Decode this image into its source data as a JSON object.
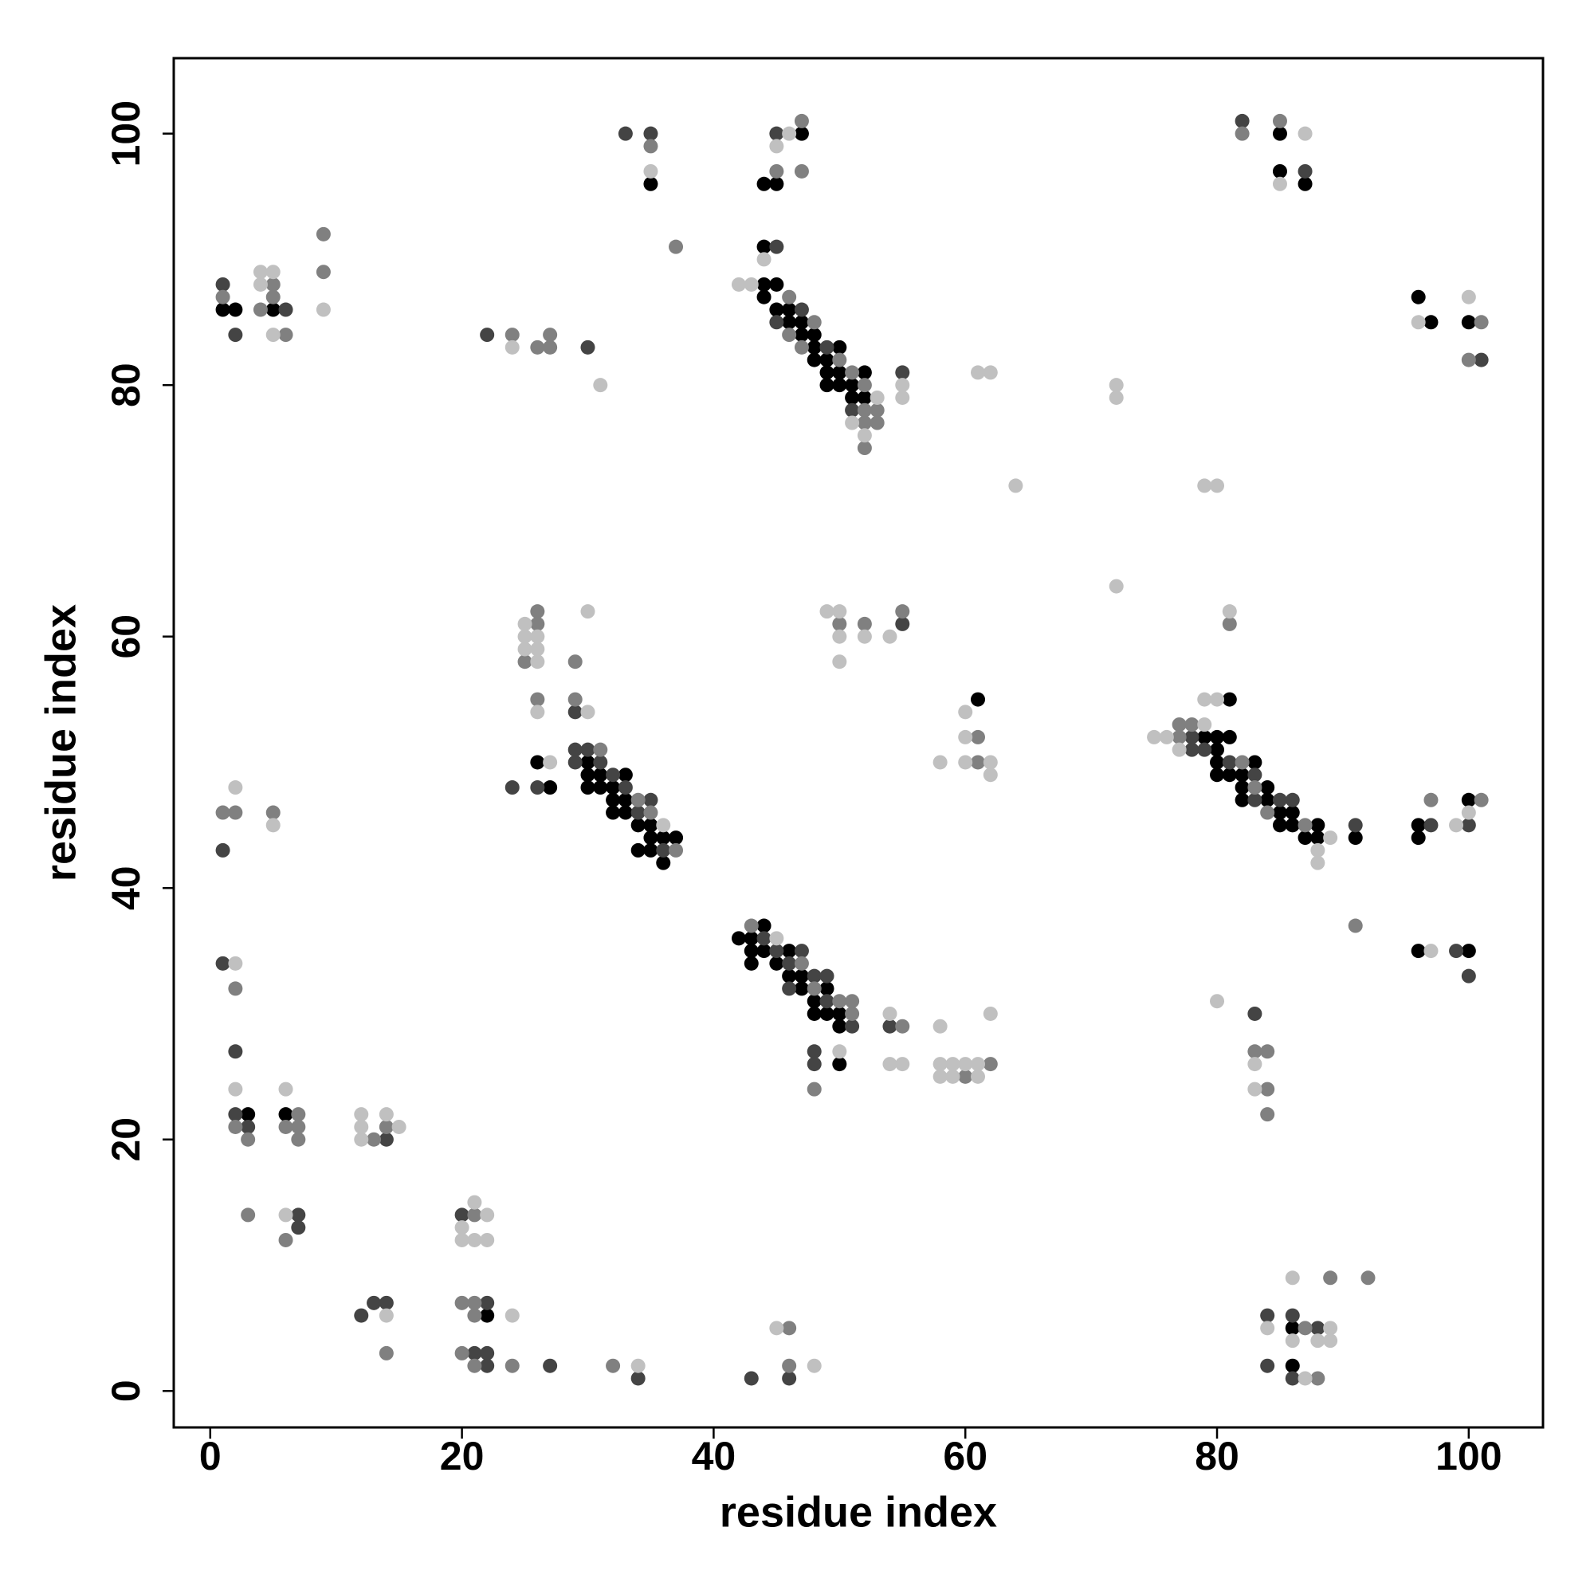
{
  "chart_data": {
    "type": "scatter",
    "x_label": "residue index",
    "y_label": "residue index",
    "xlim": [
      -2.9,
      105.9
    ],
    "ylim": [
      -2.9,
      106
    ],
    "xticks": [
      0,
      20,
      40,
      60,
      80,
      100
    ],
    "yticks": [
      0,
      20,
      40,
      60,
      80,
      100
    ],
    "grid": false,
    "series": [
      {
        "color": "#000000",
        "x": [
          1,
          2,
          5,
          35,
          44,
          44,
          44,
          44,
          45,
          45,
          45,
          46,
          46,
          47,
          47,
          47,
          48,
          48,
          48,
          49,
          49,
          49,
          50,
          50,
          50,
          51,
          51,
          52,
          52,
          85,
          85,
          87,
          96,
          97,
          100,
          26,
          27,
          30,
          30,
          30,
          31,
          31,
          32,
          32,
          32,
          33,
          33,
          33,
          34,
          34,
          35,
          35,
          35,
          36,
          36,
          37,
          61,
          79,
          80,
          80,
          80,
          80,
          81,
          81,
          81,
          82,
          82,
          82,
          83,
          84,
          84,
          85,
          85,
          86,
          86,
          87,
          88,
          88,
          91,
          96,
          96,
          100,
          42,
          43,
          43,
          43,
          44,
          44,
          45,
          46,
          46,
          47,
          47,
          48,
          48,
          49,
          49,
          50,
          50,
          50,
          96,
          100,
          3,
          6,
          22,
          86,
          86
        ],
        "values": [
          86,
          86,
          86,
          96,
          96,
          91,
          88,
          87,
          96,
          88,
          86,
          86,
          85,
          100,
          85,
          84,
          84,
          83,
          82,
          82,
          81,
          80,
          83,
          81,
          80,
          80,
          79,
          81,
          79,
          100,
          97,
          96,
          87,
          85,
          85,
          50,
          48,
          50,
          49,
          48,
          49,
          48,
          48,
          47,
          46,
          49,
          47,
          46,
          45,
          43,
          45,
          44,
          43,
          44,
          42,
          44,
          55,
          52,
          52,
          51,
          50,
          49,
          55,
          52,
          49,
          49,
          48,
          47,
          50,
          48,
          47,
          46,
          45,
          46,
          45,
          44,
          45,
          44,
          44,
          45,
          44,
          47,
          36,
          36,
          35,
          34,
          37,
          35,
          34,
          35,
          33,
          33,
          32,
          31,
          30,
          32,
          30,
          30,
          29,
          26,
          35,
          35,
          22,
          22,
          6,
          5,
          2
        ]
      },
      {
        "color": "#444444",
        "x": [
          1,
          2,
          6,
          30,
          22,
          33,
          35,
          45,
          45,
          45,
          47,
          49,
          51,
          55,
          82,
          87,
          101,
          26,
          24,
          29,
          29,
          29,
          30,
          31,
          32,
          33,
          34,
          35,
          36,
          55,
          78,
          78,
          79,
          81,
          83,
          83,
          85,
          86,
          91,
          97,
          100,
          1,
          44,
          45,
          46,
          46,
          47,
          48,
          48,
          48,
          49,
          49,
          51,
          54,
          99,
          100,
          83,
          1,
          2,
          2,
          3,
          7,
          7,
          14,
          20,
          22,
          21,
          22,
          22,
          27,
          12,
          13,
          14,
          34,
          43,
          46,
          84,
          84,
          86,
          86,
          88
        ],
        "values": [
          88,
          84,
          86,
          83,
          84,
          100,
          100,
          100,
          91,
          85,
          86,
          83,
          78,
          81,
          101,
          97,
          82,
          48,
          48,
          54,
          51,
          50,
          51,
          50,
          49,
          48,
          46,
          47,
          43,
          61,
          52,
          51,
          51,
          50,
          49,
          47,
          47,
          47,
          45,
          45,
          45,
          43,
          36,
          35,
          34,
          32,
          35,
          33,
          27,
          26,
          33,
          31,
          29,
          29,
          35,
          33,
          30,
          34,
          27,
          22,
          21,
          14,
          13,
          20,
          14,
          7,
          3,
          3,
          2,
          2,
          6,
          7,
          7,
          1,
          1,
          1,
          6,
          2,
          6,
          1,
          5
        ]
      },
      {
        "color": "#808080",
        "x": [
          1,
          4,
          5,
          5,
          6,
          9,
          9,
          24,
          26,
          27,
          27,
          35,
          37,
          45,
          46,
          46,
          47,
          47,
          47,
          48,
          50,
          51,
          52,
          52,
          52,
          52,
          53,
          53,
          82,
          85,
          100,
          101,
          25,
          26,
          26,
          26,
          29,
          29,
          31,
          34,
          35,
          37,
          50,
          52,
          55,
          61,
          61,
          77,
          77,
          78,
          82,
          83,
          84,
          87,
          97,
          101,
          81,
          1,
          2,
          5,
          43,
          47,
          48,
          48,
          50,
          51,
          51,
          55,
          60,
          62,
          91,
          83,
          84,
          84,
          84,
          2,
          2,
          3,
          3,
          6,
          6,
          7,
          7,
          7,
          13,
          14,
          20,
          20,
          21,
          21,
          21,
          21,
          24,
          14,
          32,
          46,
          46,
          87,
          88,
          89,
          92
        ],
        "values": [
          87,
          86,
          88,
          87,
          84,
          92,
          89,
          84,
          83,
          84,
          83,
          99,
          91,
          97,
          87,
          84,
          101,
          97,
          83,
          85,
          82,
          81,
          80,
          78,
          77,
          75,
          78,
          77,
          100,
          101,
          82,
          85,
          58,
          62,
          61,
          55,
          58,
          55,
          51,
          47,
          46,
          43,
          61,
          61,
          62,
          52,
          50,
          53,
          52,
          53,
          50,
          48,
          46,
          45,
          47,
          47,
          61,
          46,
          46,
          46,
          37,
          34,
          32,
          24,
          31,
          31,
          30,
          29,
          25,
          26,
          37,
          27,
          27,
          24,
          22,
          32,
          21,
          20,
          14,
          21,
          12,
          22,
          21,
          20,
          20,
          21,
          7,
          3,
          14,
          7,
          6,
          2,
          2,
          3,
          2,
          5,
          2,
          5,
          1,
          9,
          9
        ]
      },
      {
        "color": "#c0c0c0",
        "x": [
          4,
          4,
          5,
          5,
          9,
          24,
          31,
          35,
          42,
          43,
          44,
          45,
          46,
          51,
          52,
          53,
          55,
          55,
          61,
          62,
          64,
          72,
          72,
          72,
          79,
          80,
          85,
          87,
          96,
          100,
          25,
          25,
          25,
          26,
          26,
          26,
          26,
          27,
          30,
          30,
          36,
          49,
          50,
          50,
          50,
          52,
          54,
          58,
          60,
          60,
          60,
          62,
          62,
          75,
          76,
          77,
          79,
          79,
          80,
          81,
          88,
          88,
          89,
          99,
          100,
          2,
          5,
          45,
          50,
          54,
          54,
          55,
          58,
          58,
          58,
          59,
          59,
          60,
          61,
          61,
          62,
          97,
          80,
          83,
          83,
          2,
          2,
          6,
          6,
          12,
          12,
          12,
          14,
          15,
          20,
          20,
          21,
          21,
          22,
          22,
          24,
          14,
          34,
          45,
          48,
          84,
          86,
          86,
          87,
          88,
          89,
          89
        ],
        "values": [
          89,
          88,
          89,
          84,
          86,
          83,
          80,
          97,
          88,
          88,
          90,
          99,
          100,
          77,
          76,
          79,
          80,
          79,
          81,
          81,
          72,
          80,
          79,
          64,
          72,
          72,
          96,
          100,
          85,
          87,
          61,
          60,
          59,
          60,
          59,
          58,
          54,
          50,
          62,
          54,
          45,
          62,
          62,
          60,
          58,
          60,
          60,
          50,
          54,
          52,
          50,
          50,
          49,
          52,
          52,
          51,
          55,
          53,
          55,
          62,
          43,
          42,
          44,
          45,
          46,
          48,
          45,
          36,
          27,
          30,
          26,
          26,
          29,
          26,
          25,
          26,
          25,
          26,
          26,
          25,
          30,
          35,
          31,
          26,
          24,
          34,
          24,
          24,
          14,
          22,
          21,
          20,
          22,
          21,
          13,
          12,
          15,
          12,
          14,
          12,
          6,
          6,
          2,
          5,
          2,
          5,
          9,
          4,
          1,
          4,
          5,
          4
        ]
      }
    ]
  }
}
